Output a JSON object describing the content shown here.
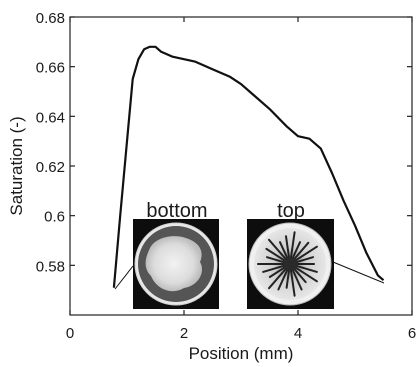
{
  "chart_data": {
    "type": "line",
    "title": "",
    "xlabel": "Position (mm)",
    "ylabel": "Saturation (-)",
    "xlim": [
      0,
      6
    ],
    "ylim": [
      0.56,
      0.68
    ],
    "xticks": [
      0,
      2,
      4,
      6
    ],
    "yticks": [
      0.58,
      0.6,
      0.62,
      0.64,
      0.66,
      0.68
    ],
    "xtick_labels": [
      "0",
      "2",
      "4",
      "6"
    ],
    "ytick_labels": [
      "0.58",
      "0.6",
      "0.62",
      "0.64",
      "0.66",
      "0.68"
    ],
    "grid": false,
    "series": [
      {
        "name": "",
        "x": [
          0.77,
          0.88,
          1.0,
          1.1,
          1.2,
          1.3,
          1.4,
          1.5,
          1.6,
          1.8,
          2.0,
          2.2,
          2.5,
          2.8,
          3.0,
          3.2,
          3.5,
          3.8,
          4.0,
          4.2,
          4.4,
          4.6,
          4.8,
          5.0,
          5.2,
          5.4,
          5.5
        ],
        "y": [
          0.571,
          0.6,
          0.63,
          0.655,
          0.663,
          0.667,
          0.668,
          0.668,
          0.666,
          0.664,
          0.663,
          0.662,
          0.659,
          0.656,
          0.653,
          0.649,
          0.643,
          0.636,
          0.632,
          0.631,
          0.627,
          0.617,
          0.606,
          0.596,
          0.585,
          0.576,
          0.574
        ]
      }
    ],
    "insets": [
      {
        "label": "bottom",
        "kind": "cross-section image"
      },
      {
        "label": "top",
        "kind": "cross-section image"
      }
    ]
  }
}
